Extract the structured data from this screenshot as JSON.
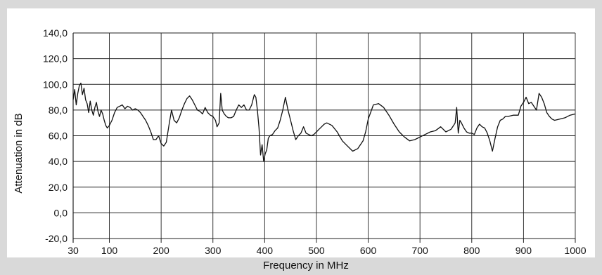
{
  "chart_data": {
    "type": "line",
    "title": "",
    "xlabel": "Frequency in MHz",
    "ylabel": "Attenuation in dB",
    "xlim": [
      30,
      1000
    ],
    "ylim": [
      -20,
      140
    ],
    "x_ticks": [
      30,
      100,
      200,
      300,
      400,
      500,
      600,
      700,
      800,
      900,
      1000
    ],
    "x_tick_labels": [
      "30",
      "100",
      "200",
      "300",
      "400",
      "500",
      "600",
      "700",
      "800",
      "900",
      "1000"
    ],
    "y_ticks": [
      -20,
      0,
      20,
      40,
      60,
      80,
      100,
      120,
      140
    ],
    "y_tick_labels": [
      "-20,0",
      "0,0",
      "20,0",
      "40,0",
      "60,0",
      "80,0",
      "100,0",
      "120,0",
      "140,0"
    ],
    "grid": true,
    "colors": {
      "background": "#d9d9d9",
      "plot_area": "#ffffff",
      "line": "#111111",
      "grid": "#222222"
    },
    "series": [
      {
        "x": [
          30,
          33,
          36,
          39,
          42,
          45,
          48,
          51,
          54,
          57,
          60,
          63,
          66,
          69,
          72,
          75,
          78,
          81,
          84,
          87,
          90,
          93,
          96,
          100,
          105,
          110,
          115,
          120,
          125,
          130,
          135,
          140,
          145,
          150,
          155,
          160,
          165,
          170,
          175,
          180,
          185,
          190,
          195,
          200,
          205,
          210,
          215,
          220,
          225,
          230,
          235,
          240,
          245,
          250,
          255,
          260,
          265,
          270,
          275,
          280,
          285,
          290,
          295,
          300,
          305,
          308,
          312,
          315,
          318,
          322,
          326,
          330,
          335,
          340,
          345,
          350,
          355,
          360,
          365,
          370,
          375,
          380,
          383,
          386,
          389,
          392,
          395,
          398,
          401,
          404,
          407,
          410,
          415,
          420,
          425,
          430,
          435,
          440,
          445,
          450,
          455,
          460,
          465,
          470,
          475,
          480,
          485,
          490,
          495,
          500,
          505,
          510,
          515,
          520,
          530,
          540,
          550,
          560,
          570,
          580,
          590,
          595,
          600,
          610,
          620,
          630,
          640,
          650,
          660,
          670,
          680,
          690,
          700,
          710,
          720,
          730,
          740,
          750,
          760,
          765,
          768,
          771,
          774,
          777,
          780,
          785,
          790,
          795,
          800,
          805,
          810,
          815,
          820,
          825,
          830,
          835,
          840,
          845,
          850,
          855,
          860,
          865,
          870,
          880,
          890,
          895,
          900,
          905,
          910,
          915,
          920,
          925,
          930,
          935,
          940,
          945,
          950,
          955,
          960,
          970,
          980,
          990,
          1000
        ],
        "y": [
          88,
          96,
          84,
          93,
          99,
          101,
          92,
          97,
          88,
          85,
          78,
          87,
          80,
          76,
          82,
          86,
          79,
          75,
          80,
          77,
          72,
          68,
          66,
          68,
          72,
          78,
          82,
          83,
          84,
          81,
          83,
          82,
          80,
          81,
          80,
          78,
          75,
          72,
          68,
          63,
          57,
          57,
          60,
          54,
          52,
          55,
          68,
          80,
          72,
          70,
          74,
          80,
          85,
          89,
          91,
          88,
          84,
          80,
          79,
          77,
          82,
          78,
          76,
          75,
          72,
          67,
          70,
          93,
          80,
          77,
          75,
          74,
          74,
          75,
          80,
          84,
          82,
          84,
          80,
          80,
          84,
          92,
          90,
          80,
          66,
          45,
          53,
          40,
          46,
          49,
          58,
          60,
          61,
          64,
          66,
          72,
          80,
          90,
          80,
          72,
          64,
          57,
          60,
          62,
          67,
          62,
          61,
          60,
          61,
          63,
          65,
          67,
          69,
          70,
          68,
          63,
          56,
          52,
          48,
          50,
          56,
          63,
          73,
          84,
          85,
          82,
          76,
          69,
          63,
          59,
          56,
          57,
          59,
          61,
          63,
          64,
          67,
          63,
          65,
          68,
          70,
          82,
          62,
          72,
          70,
          66,
          63,
          62,
          62,
          61,
          66,
          69,
          67,
          66,
          62,
          56,
          48,
          58,
          67,
          72,
          73,
          75,
          75,
          76,
          76,
          83,
          86,
          90,
          85,
          86,
          83,
          80,
          93,
          90,
          85,
          78,
          75,
          73,
          72,
          73,
          74,
          76,
          77
        ]
      }
    ]
  }
}
